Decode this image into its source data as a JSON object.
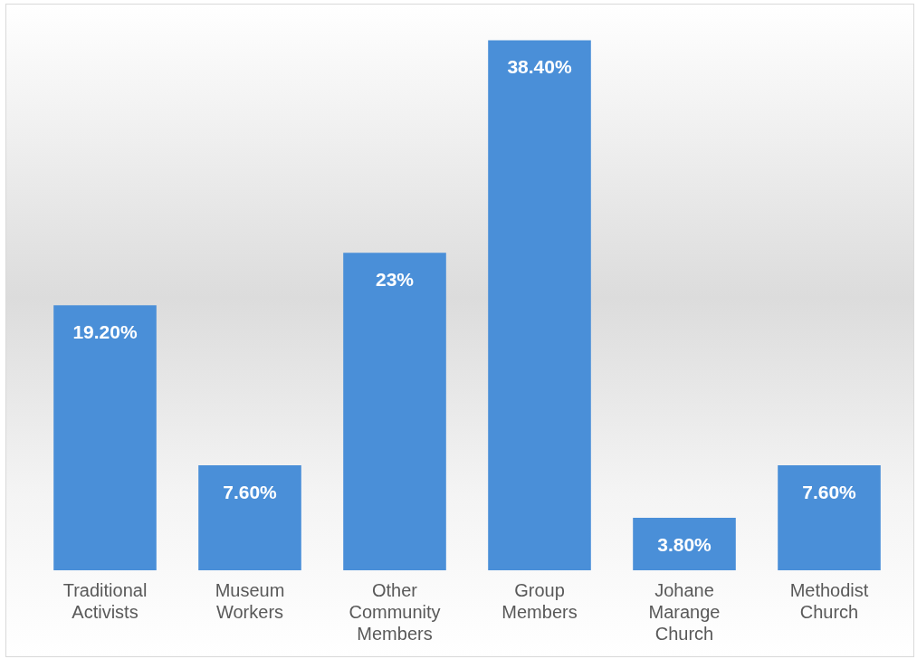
{
  "chart_data": {
    "type": "bar",
    "categories": [
      "Traditional Activists",
      "Museum Workers",
      "Other Community Members",
      "Group Members",
      "Johane Marange Church",
      "Methodist Church"
    ],
    "values": [
      19.2,
      7.6,
      23,
      38.4,
      3.8,
      7.6
    ],
    "color": "#4a8fd8",
    "value_labels": [
      "19.20%",
      "7.60%",
      "23%",
      "38.40%",
      "3.80%",
      "7.60%"
    ],
    "grid": false,
    "legend": false
  }
}
